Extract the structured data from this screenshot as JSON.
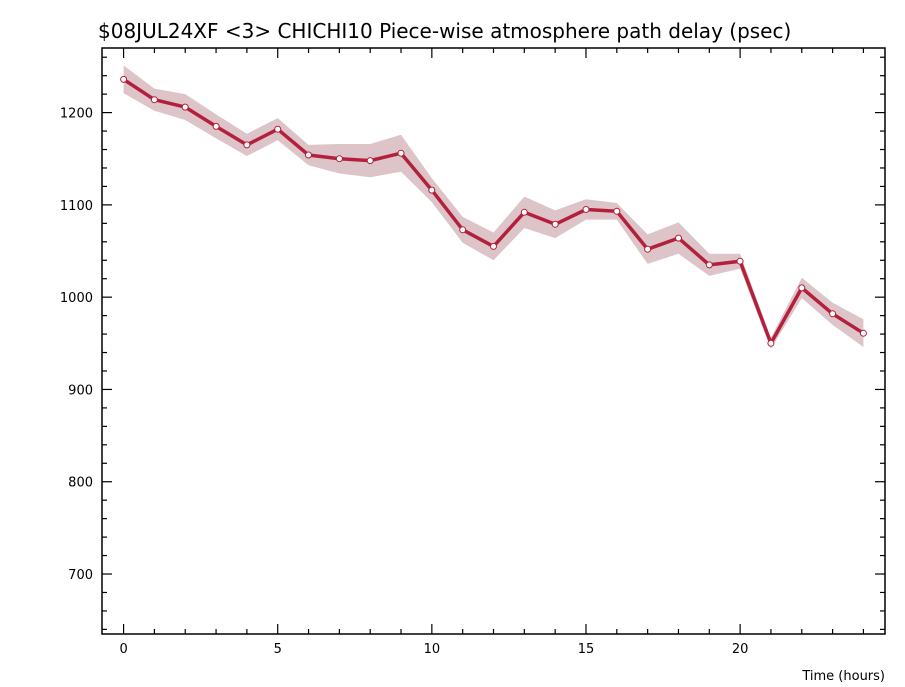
{
  "chart_data": {
    "type": "line",
    "title": "$08JUL24XF <3>   CHICHI10  Piece-wise atmosphere path delay (psec)",
    "xlabel": "Time (hours)",
    "ylabel": "",
    "xlim": [
      -0.7,
      24.7
    ],
    "ylim": [
      635,
      1270
    ],
    "x_ticks": [
      0,
      5,
      10,
      15,
      20
    ],
    "y_ticks": [
      700,
      800,
      900,
      1000,
      1100,
      1200
    ],
    "x_tick_labels": [
      "0",
      "5",
      "10",
      "15",
      "20"
    ],
    "y_tick_labels": [
      "700",
      "800",
      "900",
      "1000",
      "1100",
      "1200"
    ],
    "x_minor_step": 1,
    "y_minor_step": 20,
    "grid": false,
    "series": [
      {
        "x": [
          0,
          1,
          2,
          3,
          4,
          5,
          6,
          7,
          8,
          9,
          10,
          11,
          12,
          13,
          14,
          15,
          16,
          17,
          18,
          19,
          20,
          21,
          22,
          23,
          24
        ],
        "values": [
          1236,
          1214,
          1206,
          1185,
          1165,
          1182,
          1154,
          1150,
          1148,
          1156,
          1116,
          1073,
          1055,
          1092,
          1079,
          1095,
          1093,
          1052,
          1064,
          1035,
          1039,
          950,
          1010,
          982,
          961
        ],
        "error": [
          15,
          12,
          14,
          13,
          12,
          12,
          11,
          16,
          18,
          20,
          13,
          14,
          15,
          17,
          15,
          11,
          9,
          16,
          17,
          12,
          8,
          6,
          11,
          12,
          15
        ],
        "color": "#b4203c",
        "band_color": "#dcc4c8"
      }
    ]
  }
}
